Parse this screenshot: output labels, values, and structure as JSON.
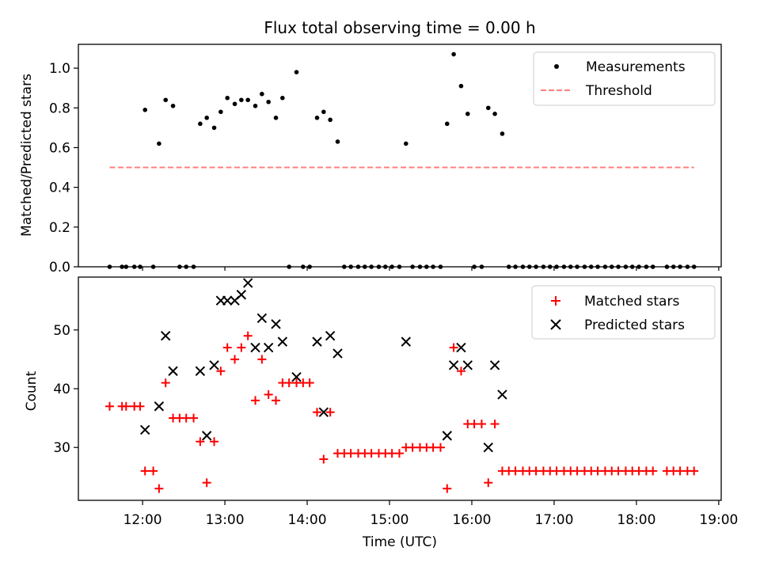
{
  "chart_data": [
    {
      "type": "scatter",
      "title": "Flux total observing time = 0.00 h",
      "xlabel": "",
      "ylabel": "Matched/Predicted stars",
      "ylim": [
        0,
        1.12
      ],
      "yticks": [
        0.0,
        0.2,
        0.4,
        0.6,
        0.8,
        1.0
      ],
      "ytick_labels": [
        "0.0",
        "0.2",
        "0.4",
        "0.6",
        "0.8",
        "1.0"
      ],
      "x_unit": "hours UTC",
      "legend": {
        "position": "top-right",
        "entries": [
          "Measurements",
          "Threshold"
        ]
      },
      "series": [
        {
          "name": "Measurements",
          "color": "#000000",
          "marker": "dot",
          "x": [
            11.6,
            11.75,
            11.8,
            11.9,
            11.97,
            12.03,
            12.13,
            12.2,
            12.28,
            12.37,
            12.45,
            12.53,
            12.62,
            12.7,
            12.78,
            12.87,
            12.95,
            13.03,
            13.12,
            13.2,
            13.28,
            13.37,
            13.45,
            13.53,
            13.62,
            13.7,
            13.78,
            13.87,
            13.95,
            14.03,
            14.12,
            14.2,
            14.28,
            14.37,
            14.45,
            14.53,
            14.62,
            14.7,
            14.78,
            14.87,
            14.95,
            15.03,
            15.12,
            15.2,
            15.28,
            15.37,
            15.45,
            15.53,
            15.62,
            15.7,
            15.78,
            15.87,
            15.95,
            16.03,
            16.12,
            16.2,
            16.28,
            16.37,
            16.45,
            16.53,
            16.62,
            16.7,
            16.78,
            16.87,
            16.95,
            17.03,
            17.12,
            17.2,
            17.28,
            17.37,
            17.45,
            17.53,
            17.62,
            17.7,
            17.78,
            17.87,
            17.95,
            18.03,
            18.12,
            18.2,
            18.37,
            18.45,
            18.53,
            18.62,
            18.7
          ],
          "y": [
            0.0,
            0.0,
            0.0,
            0.0,
            0.0,
            0.79,
            0.0,
            0.62,
            0.84,
            0.81,
            0.0,
            0.0,
            0.0,
            0.72,
            0.75,
            0.7,
            0.78,
            0.85,
            0.82,
            0.84,
            0.84,
            0.81,
            0.87,
            0.83,
            0.75,
            0.85,
            0.0,
            0.98,
            0.0,
            0.0,
            0.75,
            0.78,
            0.74,
            0.63,
            0.0,
            0.0,
            0.0,
            0.0,
            0.0,
            0.0,
            0.0,
            0.0,
            0.0,
            0.62,
            0.0,
            0.0,
            0.0,
            0.0,
            0.0,
            0.72,
            1.07,
            0.91,
            0.77,
            0.0,
            0.0,
            0.8,
            0.77,
            0.67,
            0.0,
            0.0,
            0.0,
            0.0,
            0.0,
            0.0,
            0.0,
            0.0,
            0.0,
            0.0,
            0.0,
            0.0,
            0.0,
            0.0,
            0.0,
            0.0,
            0.0,
            0.0,
            0.0,
            0.0,
            0.0,
            0.0,
            0.0,
            0.0,
            0.0,
            0.0,
            0.0
          ]
        },
        {
          "name": "Threshold",
          "color": "#ff7f7f",
          "style": "dashed",
          "x": [
            11.6,
            18.7
          ],
          "y": [
            0.5,
            0.5
          ]
        }
      ]
    },
    {
      "type": "scatter",
      "title": "",
      "xlabel": "Time (UTC)",
      "ylabel": "Count",
      "ylim": [
        21,
        59
      ],
      "yticks": [
        30,
        40,
        50
      ],
      "ytick_labels": [
        "30",
        "40",
        "50"
      ],
      "xlim": [
        11.22,
        19.03
      ],
      "xticks": [
        12,
        13,
        14,
        15,
        16,
        17,
        18,
        19
      ],
      "xtick_labels": [
        "12:00",
        "13:00",
        "14:00",
        "15:00",
        "16:00",
        "17:00",
        "18:00",
        "19:00"
      ],
      "x_unit": "hours UTC",
      "legend": {
        "position": "top-right",
        "entries": [
          "Matched stars",
          "Predicted stars"
        ]
      },
      "series": [
        {
          "name": "Matched stars",
          "color": "#ff0000",
          "marker": "plus",
          "x": [
            11.6,
            11.75,
            11.8,
            11.9,
            11.97,
            12.03,
            12.13,
            12.2,
            12.28,
            12.37,
            12.45,
            12.53,
            12.62,
            12.7,
            12.78,
            12.87,
            12.95,
            13.03,
            13.12,
            13.2,
            13.28,
            13.37,
            13.45,
            13.53,
            13.62,
            13.7,
            13.78,
            13.87,
            13.95,
            14.03,
            14.12,
            14.2,
            14.28,
            14.37,
            14.45,
            14.53,
            14.62,
            14.7,
            14.78,
            14.87,
            14.95,
            15.03,
            15.12,
            15.2,
            15.28,
            15.37,
            15.45,
            15.53,
            15.62,
            15.7,
            15.78,
            15.87,
            15.95,
            16.03,
            16.12,
            16.2,
            16.28,
            16.37,
            16.45,
            16.53,
            16.62,
            16.7,
            16.78,
            16.87,
            16.95,
            17.03,
            17.12,
            17.2,
            17.28,
            17.37,
            17.45,
            17.53,
            17.62,
            17.7,
            17.78,
            17.87,
            17.95,
            18.03,
            18.12,
            18.2,
            18.37,
            18.45,
            18.53,
            18.62,
            18.7
          ],
          "y": [
            37,
            37,
            37,
            37,
            37,
            26,
            26,
            23,
            41,
            35,
            35,
            35,
            35,
            31,
            24,
            31,
            43,
            47,
            45,
            47,
            49,
            38,
            45,
            39,
            38,
            41,
            41,
            41,
            41,
            41,
            36,
            28,
            36,
            29,
            29,
            29,
            29,
            29,
            29,
            29,
            29,
            29,
            29,
            30,
            30,
            30,
            30,
            30,
            30,
            23,
            47,
            43,
            34,
            34,
            34,
            24,
            34,
            26,
            26,
            26,
            26,
            26,
            26,
            26,
            26,
            26,
            26,
            26,
            26,
            26,
            26,
            26,
            26,
            26,
            26,
            26,
            26,
            26,
            26,
            26,
            26,
            26,
            26,
            26,
            26
          ]
        },
        {
          "name": "Predicted stars",
          "color": "#000000",
          "marker": "x",
          "x": [
            12.03,
            12.2,
            12.28,
            12.37,
            12.7,
            12.78,
            12.87,
            12.95,
            13.03,
            13.12,
            13.2,
            13.28,
            13.37,
            13.45,
            13.53,
            13.62,
            13.7,
            13.87,
            14.12,
            14.2,
            14.28,
            14.37,
            15.2,
            15.7,
            15.78,
            15.87,
            15.95,
            16.2,
            16.28,
            16.37
          ],
          "y": [
            33,
            37,
            49,
            43,
            43,
            32,
            44,
            55,
            55,
            55,
            56,
            58,
            47,
            52,
            47,
            51,
            48,
            42,
            48,
            36,
            49,
            46,
            48,
            32,
            44,
            47,
            44,
            30,
            44,
            39
          ]
        }
      ]
    }
  ]
}
